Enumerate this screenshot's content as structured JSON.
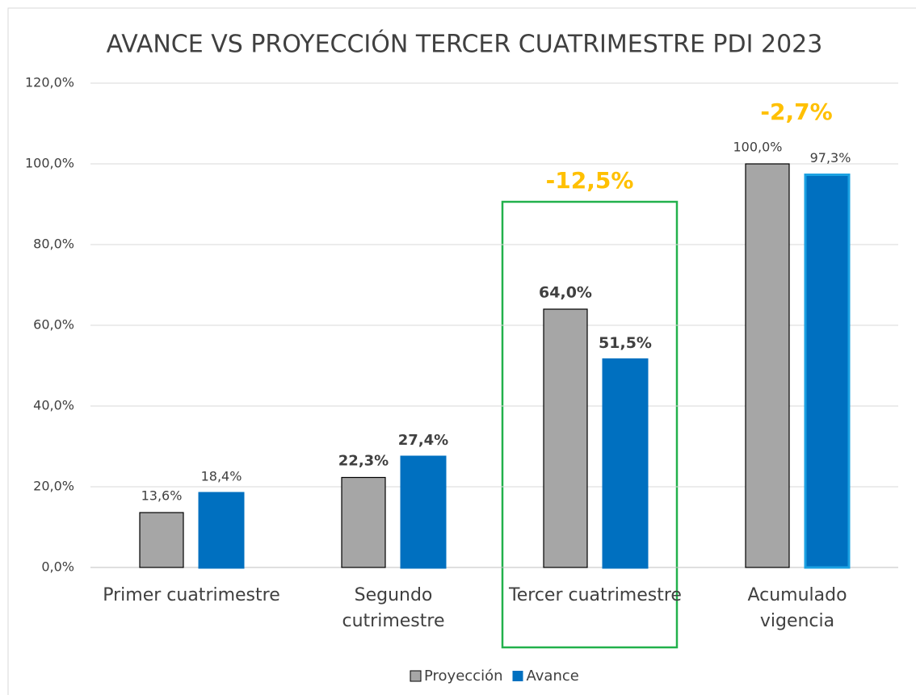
{
  "chart_data": {
    "type": "bar",
    "title": "AVANCE VS PROYECCIÓN TERCER  CUATRIMESTRE PDI 2023",
    "categories": [
      "Primer cuatrimestre",
      "Segundo cutrimestre",
      "Tercer cuatrimestre",
      "Acumulado vigencia"
    ],
    "series": [
      {
        "name": "Proyección",
        "color": "#a6a6a6",
        "values": [
          13.6,
          22.3,
          64.0,
          100.0
        ],
        "value_labels": [
          "13,6%",
          "22,3%",
          "64,0%",
          "100,0%"
        ]
      },
      {
        "name": "Avance",
        "color": "#0070c0",
        "values": [
          18.4,
          27.4,
          51.5,
          97.3
        ],
        "value_labels": [
          "18,4%",
          "27,4%",
          "51,5%",
          "97,3%"
        ]
      }
    ],
    "annotations": [
      "-12,5%",
      "-2,7%"
    ],
    "ylim": [
      0,
      120
    ],
    "yticks": [
      {
        "value": 0,
        "label": "0,0%"
      },
      {
        "value": 20,
        "label": "20,0%"
      },
      {
        "value": 40,
        "label": "40,0%"
      },
      {
        "value": 60,
        "label": "60,0%"
      },
      {
        "value": 80,
        "label": "80,0%"
      },
      {
        "value": 100,
        "label": "100,0%"
      },
      {
        "value": 120,
        "label": "120,0%"
      }
    ],
    "grid": true,
    "legend": "bottom"
  }
}
